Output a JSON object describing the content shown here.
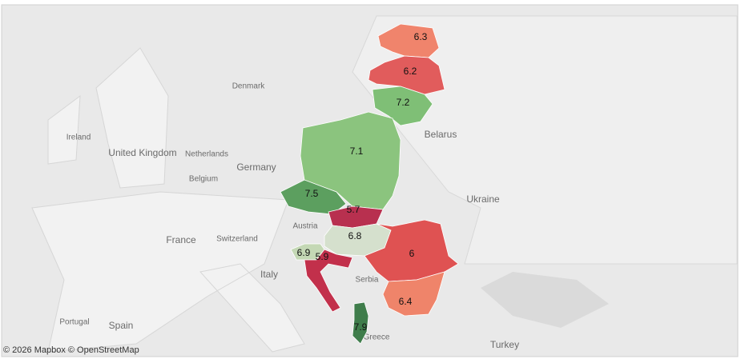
{
  "map": {
    "places": [
      "Ireland",
      "United Kingdom",
      "Denmark",
      "Netherlands",
      "Belgium",
      "Germany",
      "France",
      "Switzerland",
      "Austria",
      "Italy",
      "Portugal",
      "Spain",
      "Belarus",
      "Ukraine",
      "Serbia",
      "Greece",
      "Turkey"
    ],
    "regions": [
      {
        "value": 6.3,
        "color": "#f0846c"
      },
      {
        "value": 6.2,
        "color": "#e15c5c"
      },
      {
        "value": 7.2,
        "color": "#7fbf76"
      },
      {
        "value": 7.1,
        "color": "#8bc47e"
      },
      {
        "value": 7.5,
        "color": "#5c9f5f"
      },
      {
        "value": 5.7,
        "color": "#b8304f"
      },
      {
        "value": 6.8,
        "color": "#d5e0cd"
      },
      {
        "value": 6.9,
        "color": "#c4d8b5"
      },
      {
        "value": 5.9,
        "color": "#c2304b"
      },
      {
        "value": 6.0,
        "color": "#df5252"
      },
      {
        "value": 6.4,
        "color": "#ef846a"
      },
      {
        "value": 7.9,
        "color": "#3f7d4b"
      }
    ],
    "attribution": "© 2026 Mapbox © OpenStreetMap"
  }
}
